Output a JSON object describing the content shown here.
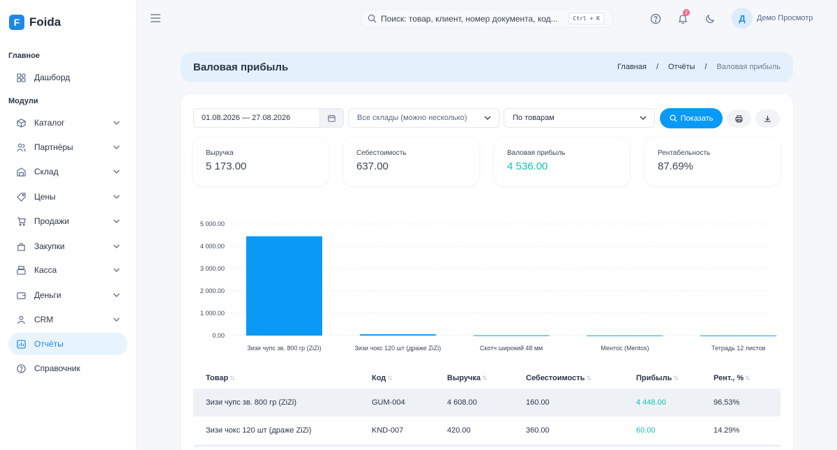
{
  "app": {
    "name": "Foida",
    "logo_letter": "F"
  },
  "sidebar": {
    "section_main": "Главное",
    "section_modules": "Модули",
    "items": [
      {
        "label": "Дашборд",
        "icon": "dashboard-icon"
      },
      {
        "label": "Каталог",
        "icon": "box-icon"
      },
      {
        "label": "Партнёры",
        "icon": "users-icon"
      },
      {
        "label": "Склад",
        "icon": "warehouse-icon"
      },
      {
        "label": "Цены",
        "icon": "tag-icon"
      },
      {
        "label": "Продажи",
        "icon": "cart-icon"
      },
      {
        "label": "Закупки",
        "icon": "bag-icon"
      },
      {
        "label": "Касса",
        "icon": "register-icon"
      },
      {
        "label": "Деньги",
        "icon": "wallet-icon"
      },
      {
        "label": "CRM",
        "icon": "people-icon"
      },
      {
        "label": "Отчёты",
        "icon": "report-icon",
        "active": true
      },
      {
        "label": "Справочник",
        "icon": "help-icon"
      }
    ]
  },
  "topbar": {
    "search_placeholder": "Поиск: товар, клиент, номер документа, код...",
    "shortcut": "Ctrl + K",
    "notifications_count": "2",
    "user_initial": "Д",
    "user_name": "Демо Просмотр"
  },
  "page": {
    "title": "Валовая прибыль",
    "breadcrumbs": [
      "Главная",
      "Отчёты",
      "Валовая прибыль"
    ]
  },
  "filters": {
    "date_range": "01.08.2026 — 27.08.2026",
    "warehouses_placeholder": "Все склады (можно несколько)",
    "group_by": "По товарам",
    "show_label": "Показать"
  },
  "kpis": [
    {
      "label": "Выручка",
      "value": "5 173.00"
    },
    {
      "label": "Себестоимость",
      "value": "637.00"
    },
    {
      "label": "Валовая прибыль",
      "value": "4 536.00",
      "accent": "#13c1b1"
    },
    {
      "label": "Рентабельность",
      "value": "87.69%"
    }
  ],
  "chart_data": {
    "type": "bar",
    "categories": [
      "Зизи чупс зв. 800 гр (ZiZi)",
      "Зизи чокс 120 шт (драже ZiZi)",
      "Скотч широкий 48 мм",
      "Ментос (Mentos)",
      "Тетрадь 12 листов"
    ],
    "values": [
      4448,
      60,
      15,
      8,
      5
    ],
    "ylim": [
      0,
      5000
    ],
    "yticks": [
      "0.00",
      "1 000.00",
      "2 000.00",
      "3 000.00",
      "4 000.00",
      "5 000.00"
    ],
    "ytick_values": [
      0,
      1000,
      2000,
      3000,
      4000,
      5000
    ],
    "color": "#0a9af5",
    "grid": true
  },
  "table": {
    "headers": [
      "Товар",
      "Код",
      "Выручка",
      "Себестоимость",
      "Прибыль",
      "Рент., %"
    ],
    "rows": [
      [
        "Зизи чупс зв. 800 гр (ZiZi)",
        "GUM-004",
        "4 608.00",
        "160.00",
        "4 448.00",
        "96.53%"
      ],
      [
        "Зизи чокс 120 шт (драже ZiZi)",
        "KND-007",
        "420.00",
        "360.00",
        "60.00",
        "14.29%"
      ]
    ]
  }
}
